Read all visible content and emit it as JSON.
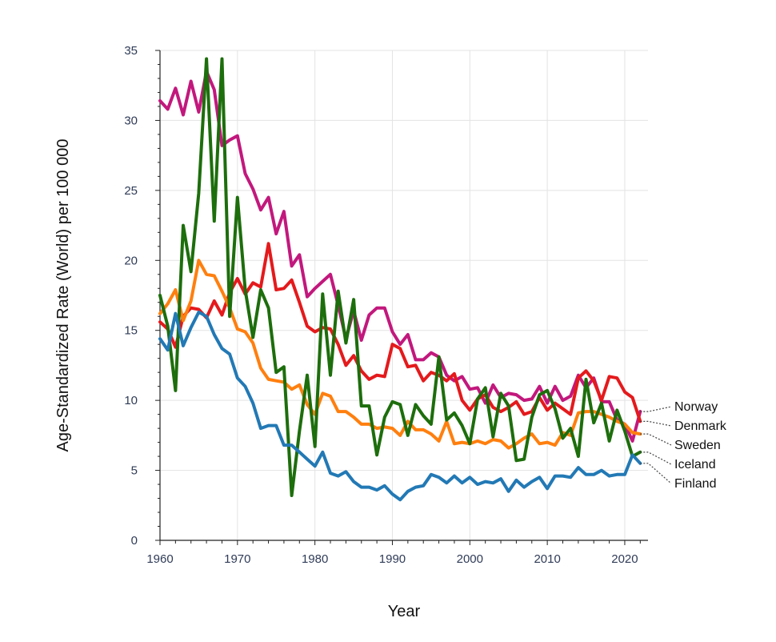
{
  "chart_data": {
    "type": "line",
    "title": "",
    "xlabel": "Year",
    "ylabel": "Age-Standardized Rate (World) per 100 000",
    "xlim": [
      1960,
      2023
    ],
    "ylim": [
      0,
      35
    ],
    "xticks": [
      1960,
      1970,
      1980,
      1990,
      2000,
      2010,
      2020
    ],
    "yticks": [
      0,
      5,
      10,
      15,
      20,
      25,
      30,
      35
    ],
    "grid": true,
    "legend": "right-end labels",
    "x": [
      1960,
      1961,
      1962,
      1963,
      1964,
      1965,
      1966,
      1967,
      1968,
      1969,
      1970,
      1971,
      1972,
      1973,
      1974,
      1975,
      1976,
      1977,
      1978,
      1979,
      1980,
      1981,
      1982,
      1983,
      1984,
      1985,
      1986,
      1987,
      1988,
      1989,
      1990,
      1991,
      1992,
      1993,
      1994,
      1995,
      1996,
      1997,
      1998,
      1999,
      2000,
      2001,
      2002,
      2003,
      2004,
      2005,
      2006,
      2007,
      2008,
      2009,
      2010,
      2011,
      2012,
      2013,
      2014,
      2015,
      2016,
      2017,
      2018,
      2019,
      2020,
      2021,
      2022
    ],
    "series": [
      {
        "name": "Norway",
        "color": "#c2187d",
        "values": [
          31.4,
          30.8,
          32.3,
          30.4,
          32.8,
          30.6,
          33.5,
          32.2,
          28.2,
          28.6,
          28.9,
          26.2,
          25.1,
          23.6,
          24.5,
          21.9,
          23.5,
          19.6,
          20.4,
          17.4,
          18.0,
          18.5,
          19.0,
          16.8,
          14.4,
          16.4,
          14.3,
          16.1,
          16.6,
          16.6,
          14.9,
          14.0,
          14.7,
          12.9,
          12.9,
          13.4,
          13.1,
          11.8,
          11.4,
          11.7,
          10.8,
          10.9,
          9.8,
          11.1,
          10.2,
          10.5,
          10.4,
          10.0,
          10.1,
          11.0,
          9.8,
          11.0,
          10.0,
          10.3,
          11.8,
          10.9,
          11.6,
          9.9,
          9.9,
          8.6,
          8.3,
          7.1,
          9.2
        ]
      },
      {
        "name": "Denmark",
        "color": "#e41a1c",
        "values": [
          15.6,
          15.1,
          13.8,
          16.0,
          16.6,
          16.5,
          15.9,
          17.1,
          16.1,
          17.7,
          18.7,
          17.6,
          18.4,
          18.1,
          21.2,
          17.9,
          18.0,
          18.6,
          17.0,
          15.3,
          14.9,
          15.2,
          15.1,
          14.0,
          12.5,
          13.2,
          12.1,
          11.5,
          11.8,
          11.7,
          14.0,
          13.7,
          12.4,
          12.5,
          11.4,
          12.0,
          11.8,
          11.4,
          11.9,
          10.0,
          9.3,
          10.1,
          10.4,
          9.5,
          9.2,
          9.5,
          9.9,
          9.0,
          9.2,
          10.2,
          9.3,
          9.8,
          9.4,
          9.0,
          11.6,
          12.1,
          11.4,
          10.0,
          11.7,
          11.6,
          10.6,
          10.2,
          8.5
        ]
      },
      {
        "name": "Sweden",
        "color": "#ff7f0e",
        "values": [
          16.2,
          16.9,
          17.9,
          15.7,
          17.1,
          20.0,
          19.0,
          18.9,
          17.8,
          16.6,
          15.1,
          14.9,
          14.1,
          12.3,
          11.5,
          11.4,
          11.3,
          10.8,
          11.1,
          9.7,
          9.0,
          10.5,
          10.3,
          9.2,
          9.2,
          8.8,
          8.3,
          8.3,
          8.0,
          8.1,
          8.0,
          7.5,
          8.5,
          7.9,
          7.9,
          7.6,
          7.1,
          8.5,
          6.9,
          7.0,
          6.9,
          7.1,
          6.9,
          7.2,
          7.1,
          6.6,
          6.9,
          7.3,
          7.6,
          6.9,
          7.0,
          6.8,
          7.7,
          7.5,
          9.1,
          9.2,
          9.2,
          9.0,
          8.8,
          8.5,
          8.3,
          7.7,
          7.6
        ]
      },
      {
        "name": "Iceland",
        "color": "#1d6e0c",
        "values": [
          17.5,
          15.3,
          10.7,
          22.5,
          19.2,
          24.8,
          34.4,
          22.8,
          34.4,
          16.0,
          24.5,
          17.9,
          14.5,
          17.9,
          16.6,
          12.0,
          12.4,
          3.2,
          7.8,
          11.8,
          6.7,
          17.6,
          11.8,
          17.8,
          14.1,
          17.2,
          9.6,
          9.6,
          6.1,
          8.8,
          9.9,
          9.7,
          7.5,
          9.7,
          8.9,
          8.3,
          13.1,
          8.6,
          9.1,
          8.2,
          6.9,
          10.1,
          10.9,
          7.4,
          10.5,
          9.6,
          5.7,
          5.8,
          8.8,
          10.4,
          10.7,
          9.4,
          7.3,
          8.0,
          6.0,
          11.5,
          8.4,
          9.8,
          7.1,
          9.3,
          7.8,
          6.0,
          6.3
        ]
      },
      {
        "name": "Finland",
        "color": "#2279b5",
        "values": [
          14.4,
          13.6,
          16.2,
          13.9,
          15.2,
          16.3,
          16.0,
          14.7,
          13.7,
          13.3,
          11.6,
          11.0,
          9.8,
          8.0,
          8.2,
          8.2,
          6.8,
          6.8,
          6.3,
          5.8,
          5.3,
          6.3,
          4.8,
          4.6,
          4.9,
          4.2,
          3.8,
          3.8,
          3.6,
          3.9,
          3.3,
          2.9,
          3.5,
          3.8,
          3.9,
          4.7,
          4.5,
          4.1,
          4.6,
          4.1,
          4.5,
          4.0,
          4.2,
          4.1,
          4.4,
          3.5,
          4.3,
          3.8,
          4.2,
          4.5,
          3.7,
          4.6,
          4.6,
          4.5,
          5.2,
          4.7,
          4.7,
          5.0,
          4.6,
          4.7,
          4.7,
          6.1,
          5.5
        ]
      }
    ]
  }
}
